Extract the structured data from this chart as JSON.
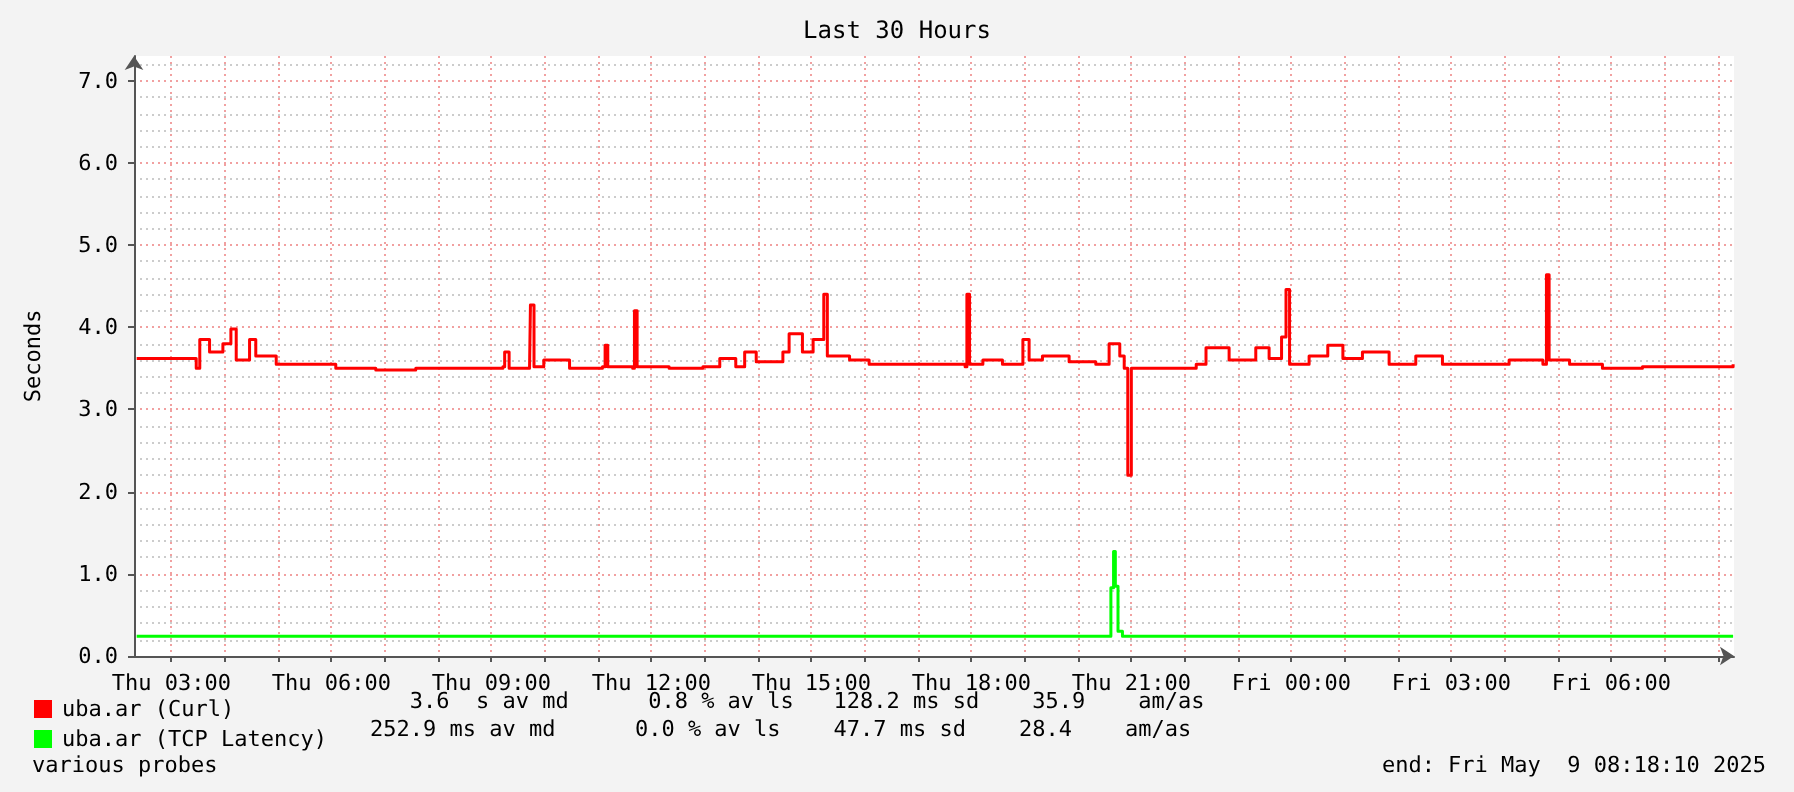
{
  "chart_data": {
    "type": "step",
    "title": "Last 30 Hours",
    "ylabel": "Seconds",
    "xlim": [
      "2025-05-08T02:18",
      "2025-05-09T08:18"
    ],
    "ylim": [
      0,
      7.3
    ],
    "xticks": [
      {
        "value": "2025-05-08T03:00",
        "label": "Thu 03:00"
      },
      {
        "value": "2025-05-08T04:00",
        "label": null
      },
      {
        "value": "2025-05-08T05:00",
        "label": null
      },
      {
        "value": "2025-05-08T06:00",
        "label": "Thu 06:00"
      },
      {
        "value": "2025-05-08T07:00",
        "label": null
      },
      {
        "value": "2025-05-08T08:00",
        "label": null
      },
      {
        "value": "2025-05-08T09:00",
        "label": "Thu 09:00"
      },
      {
        "value": "2025-05-08T10:00",
        "label": null
      },
      {
        "value": "2025-05-08T11:00",
        "label": null
      },
      {
        "value": "2025-05-08T12:00",
        "label": "Thu 12:00"
      },
      {
        "value": "2025-05-08T13:00",
        "label": null
      },
      {
        "value": "2025-05-08T14:00",
        "label": null
      },
      {
        "value": "2025-05-08T15:00",
        "label": "Thu 15:00"
      },
      {
        "value": "2025-05-08T16:00",
        "label": null
      },
      {
        "value": "2025-05-08T17:00",
        "label": null
      },
      {
        "value": "2025-05-08T18:00",
        "label": "Thu 18:00"
      },
      {
        "value": "2025-05-08T19:00",
        "label": null
      },
      {
        "value": "2025-05-08T20:00",
        "label": null
      },
      {
        "value": "2025-05-08T21:00",
        "label": "Thu 21:00"
      },
      {
        "value": "2025-05-08T22:00",
        "label": null
      },
      {
        "value": "2025-05-08T23:00",
        "label": null
      },
      {
        "value": "2025-05-09T00:00",
        "label": "Fri 00:00"
      },
      {
        "value": "2025-05-09T01:00",
        "label": null
      },
      {
        "value": "2025-05-09T02:00",
        "label": null
      },
      {
        "value": "2025-05-09T03:00",
        "label": "Fri 03:00"
      },
      {
        "value": "2025-05-09T04:00",
        "label": null
      },
      {
        "value": "2025-05-09T05:00",
        "label": null
      },
      {
        "value": "2025-05-09T06:00",
        "label": "Fri 06:00"
      },
      {
        "value": "2025-05-09T07:00",
        "label": null
      },
      {
        "value": "2025-05-09T08:00",
        "label": null
      }
    ],
    "yticks": [
      {
        "value": 0,
        "label": "0.0"
      },
      {
        "value": 1,
        "label": "1.0"
      },
      {
        "value": 2,
        "label": "2.0"
      },
      {
        "value": 3,
        "label": "3.0"
      },
      {
        "value": 4,
        "label": "4.0"
      },
      {
        "value": 5,
        "label": "5.0"
      },
      {
        "value": 6,
        "label": "6.0"
      },
      {
        "value": 7,
        "label": "7.0"
      }
    ],
    "grid": true,
    "legend": "bottom left",
    "marker": "none",
    "series": [
      {
        "name": "uba.ar (Curl)",
        "color": "#ff0000",
        "x": [
          "2025-05-08T02:21",
          "2025-05-08T02:54",
          "2025-05-08T03:28",
          "2025-05-08T03:32",
          "2025-05-08T03:43",
          "2025-05-08T03:58",
          "2025-05-08T04:07",
          "2025-05-08T04:13",
          "2025-05-08T04:28",
          "2025-05-08T04:35",
          "2025-05-08T04:58",
          "2025-05-08T05:28",
          "2025-05-08T06:05",
          "2025-05-08T06:50",
          "2025-05-08T07:35",
          "2025-05-08T08:20",
          "2025-05-08T09:13",
          "2025-05-08T09:15",
          "2025-05-08T09:20",
          "2025-05-08T09:43",
          "2025-05-08T09:44",
          "2025-05-08T09:48",
          "2025-05-08T09:59",
          "2025-05-08T10:28",
          "2025-05-08T11:05",
          "2025-05-08T11:08",
          "2025-05-08T11:11",
          "2025-05-08T11:39",
          "2025-05-08T11:41",
          "2025-05-08T11:44",
          "2025-05-08T12:20",
          "2025-05-08T12:58",
          "2025-05-08T13:17",
          "2025-05-08T13:35",
          "2025-05-08T13:45",
          "2025-05-08T13:58",
          "2025-05-08T14:28",
          "2025-05-08T14:35",
          "2025-05-08T14:50",
          "2025-05-08T15:02",
          "2025-05-08T15:14",
          "2025-05-08T15:18",
          "2025-05-08T15:43",
          "2025-05-08T16:05",
          "2025-05-08T16:20",
          "2025-05-08T17:05",
          "2025-05-08T17:53",
          "2025-05-08T17:55",
          "2025-05-08T17:58",
          "2025-05-08T18:13",
          "2025-05-08T18:35",
          "2025-05-08T18:58",
          "2025-05-08T19:05",
          "2025-05-08T19:20",
          "2025-05-08T19:50",
          "2025-05-08T20:20",
          "2025-05-08T20:35",
          "2025-05-08T20:47",
          "2025-05-08T20:52",
          "2025-05-08T20:56",
          "2025-05-08T21:00",
          "2025-05-08T21:35",
          "2025-05-08T22:13",
          "2025-05-08T22:24",
          "2025-05-08T22:50",
          "2025-05-08T23:20",
          "2025-05-08T23:35",
          "2025-05-08T23:49",
          "2025-05-08T23:54",
          "2025-05-08T23:58",
          "2025-05-09T00:20",
          "2025-05-09T00:41",
          "2025-05-09T00:58",
          "2025-05-09T01:20",
          "2025-05-09T01:50",
          "2025-05-09T02:20",
          "2025-05-09T02:50",
          "2025-05-09T03:35",
          "2025-05-09T04:05",
          "2025-05-09T04:43",
          "2025-05-09T04:47",
          "2025-05-09T04:50",
          "2025-05-09T05:13",
          "2025-05-09T05:50",
          "2025-05-09T06:35",
          "2025-05-09T07:20",
          "2025-05-09T07:58",
          "2025-05-09T08:17"
        ],
        "values": [
          3.62,
          3.62,
          3.5,
          3.85,
          3.7,
          3.8,
          3.98,
          3.6,
          3.85,
          3.65,
          3.55,
          3.55,
          3.5,
          3.48,
          3.5,
          3.5,
          3.52,
          3.7,
          3.5,
          3.52,
          4.27,
          3.52,
          3.6,
          3.5,
          3.52,
          3.78,
          3.52,
          3.5,
          4.2,
          3.52,
          3.5,
          3.52,
          3.62,
          3.52,
          3.7,
          3.58,
          3.7,
          3.92,
          3.7,
          3.85,
          4.4,
          3.65,
          3.6,
          3.55,
          3.55,
          3.55,
          3.52,
          4.4,
          3.55,
          3.6,
          3.55,
          3.85,
          3.6,
          3.65,
          3.58,
          3.55,
          3.8,
          3.65,
          3.5,
          2.2,
          3.5,
          3.5,
          3.55,
          3.75,
          3.6,
          3.75,
          3.62,
          3.88,
          4.46,
          3.55,
          3.65,
          3.78,
          3.62,
          3.7,
          3.55,
          3.65,
          3.55,
          3.55,
          3.6,
          3.55,
          4.64,
          3.6,
          3.55,
          3.5,
          3.52,
          3.52,
          3.52,
          3.55
        ]
      },
      {
        "name": "uba.ar (TCP Latency)",
        "color": "#00ff00",
        "x": [
          "2025-05-08T02:21",
          "2025-05-08T20:34",
          "2025-05-08T20:37",
          "2025-05-08T20:40",
          "2025-05-08T20:42",
          "2025-05-08T20:45",
          "2025-05-08T20:50",
          "2025-05-09T08:17"
        ],
        "values": [
          0.24,
          0.24,
          0.83,
          1.27,
          0.85,
          0.3,
          0.24,
          0.24
        ]
      }
    ],
    "annotations": [
      "   3.6  s av md      0.8 % av ls   128.2 ms sd    35.9    am/as",
      "252.9 ms av md      0.0 % av ls    47.7 ms sd    28.4    am/as",
      "various probes",
      "end: Fri May  9 08:18:10 2025"
    ]
  }
}
